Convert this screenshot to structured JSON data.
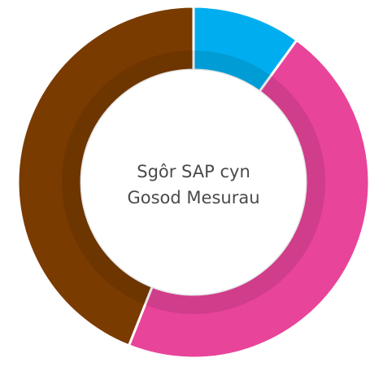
{
  "chart_data": {
    "type": "donut",
    "center_label": [
      "Sgôr SAP cyn",
      "Gosod Mesurau"
    ],
    "values": [
      10,
      46,
      44
    ],
    "colors": [
      "#00aeef",
      "#e8449a",
      "#7a3b00"
    ]
  }
}
